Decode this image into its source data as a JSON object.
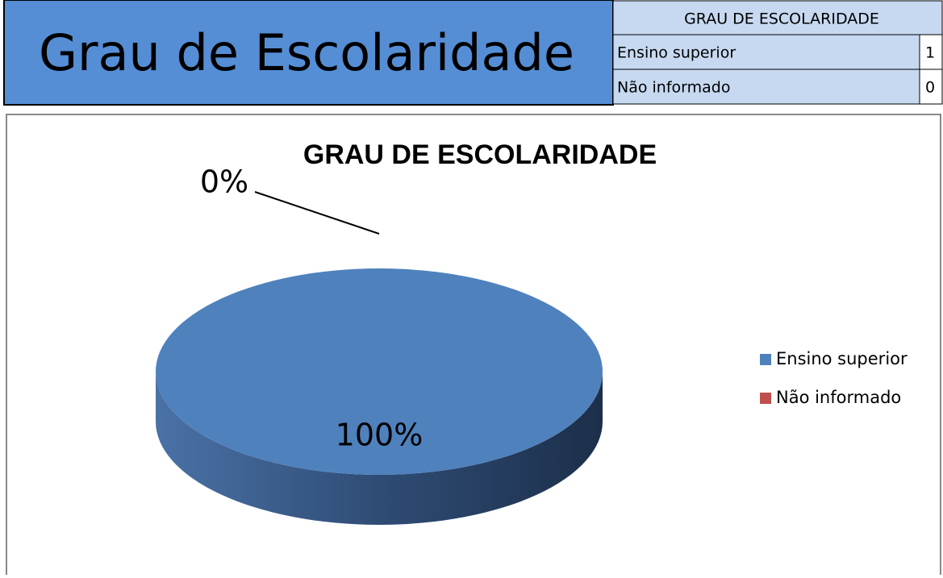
{
  "header": {
    "title": "Grau de Escolaridade"
  },
  "table": {
    "title": "GRAU DE ESCOLARIDADE",
    "rows": [
      [
        "Ensino superior",
        1
      ],
      [
        "Não informado",
        0
      ]
    ]
  },
  "chart_data": {
    "type": "pie",
    "title": "GRAU DE ESCOLARIDADE",
    "categories": [
      "Ensino superior",
      "Não informado"
    ],
    "values": [
      100,
      0
    ],
    "value_labels": [
      "100%",
      "0%"
    ],
    "colors": [
      "#4f81bd",
      "#c0504d"
    ],
    "legend": "right"
  }
}
